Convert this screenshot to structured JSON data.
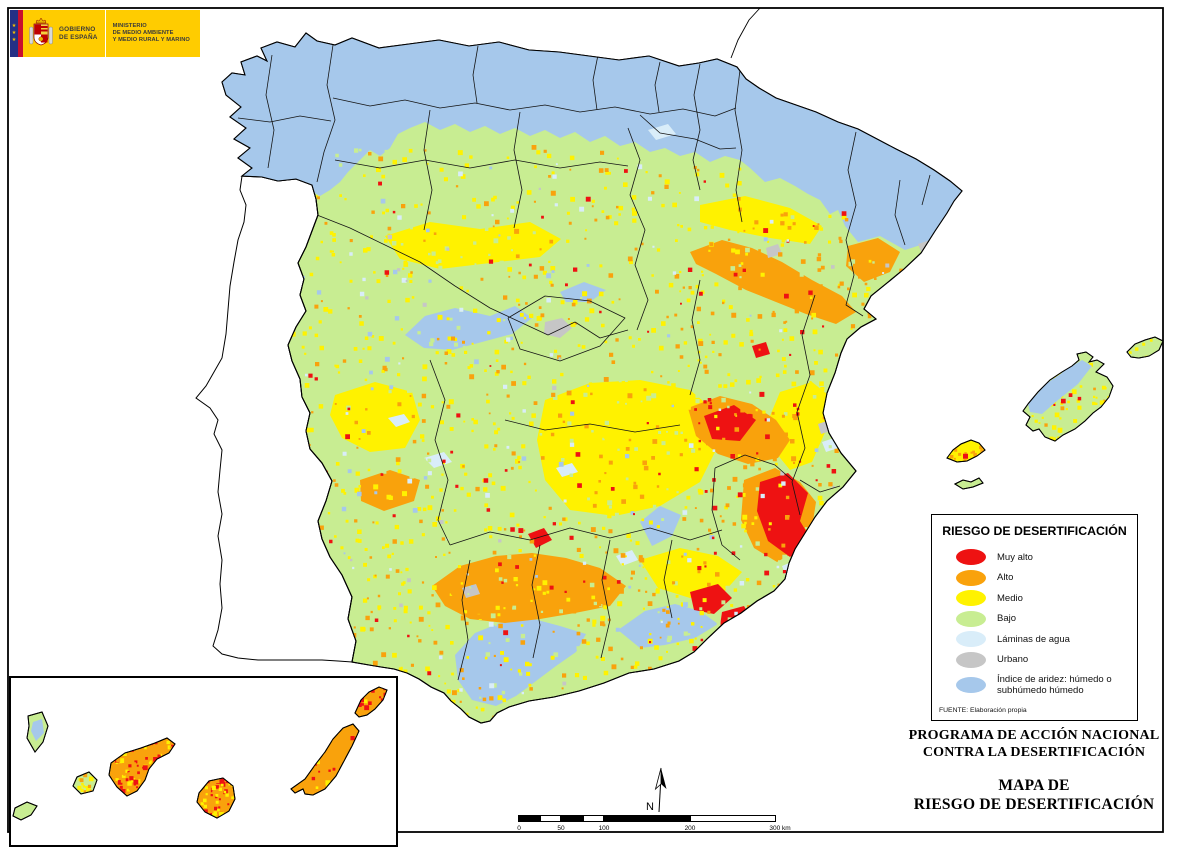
{
  "logo": {
    "government_line1": "GOBIERNO",
    "government_line2": "DE ESPAÑA",
    "ministry_line1": "MINISTERIO",
    "ministry_line2": "DE MEDIO AMBIENTE",
    "ministry_line3": "Y MEDIO RURAL Y MARINO"
  },
  "legend": {
    "title": "RIESGO DE DESERTIFICACIÓN",
    "items": [
      {
        "label": "Muy alto",
        "color": "#EE1212"
      },
      {
        "label": "Alto",
        "color": "#F9A20C"
      },
      {
        "label": "Medio",
        "color": "#FFF200"
      },
      {
        "label": "Bajo",
        "color": "#C8ED92"
      },
      {
        "label": "Láminas de agua",
        "color": "#D9EDF9"
      },
      {
        "label": "Urbano",
        "color": "#C6C6C6"
      },
      {
        "label": "Índice de aridez: húmedo o subhúmedo húmedo",
        "color": "#A6C8EB"
      }
    ],
    "source": "FUENTE: Elaboración propia"
  },
  "titles": {
    "program_line1": "PROGRAMA DE ACCIÓN NACIONAL",
    "program_line2": "CONTRA LA DESERTIFICACIÓN",
    "map_line1": "MAPA DE",
    "map_line2": "RIESGO DE DESERTIFICACIÓN"
  },
  "scalebar": {
    "labels": [
      "0",
      "50",
      "100",
      "200",
      "300 km"
    ]
  },
  "north": {
    "label": "N"
  },
  "map": {
    "palette": {
      "muy_alto": "#EE1212",
      "alto": "#F9A20C",
      "medio": "#FFF200",
      "bajo": "#C8ED92",
      "laminas_de_agua": "#D9EDF9",
      "urbano": "#C6C6C6",
      "indice_aridez_humedo": "#A6C8EB",
      "coastline": "#000000",
      "portugal_fill": "#FFFFFF"
    }
  }
}
